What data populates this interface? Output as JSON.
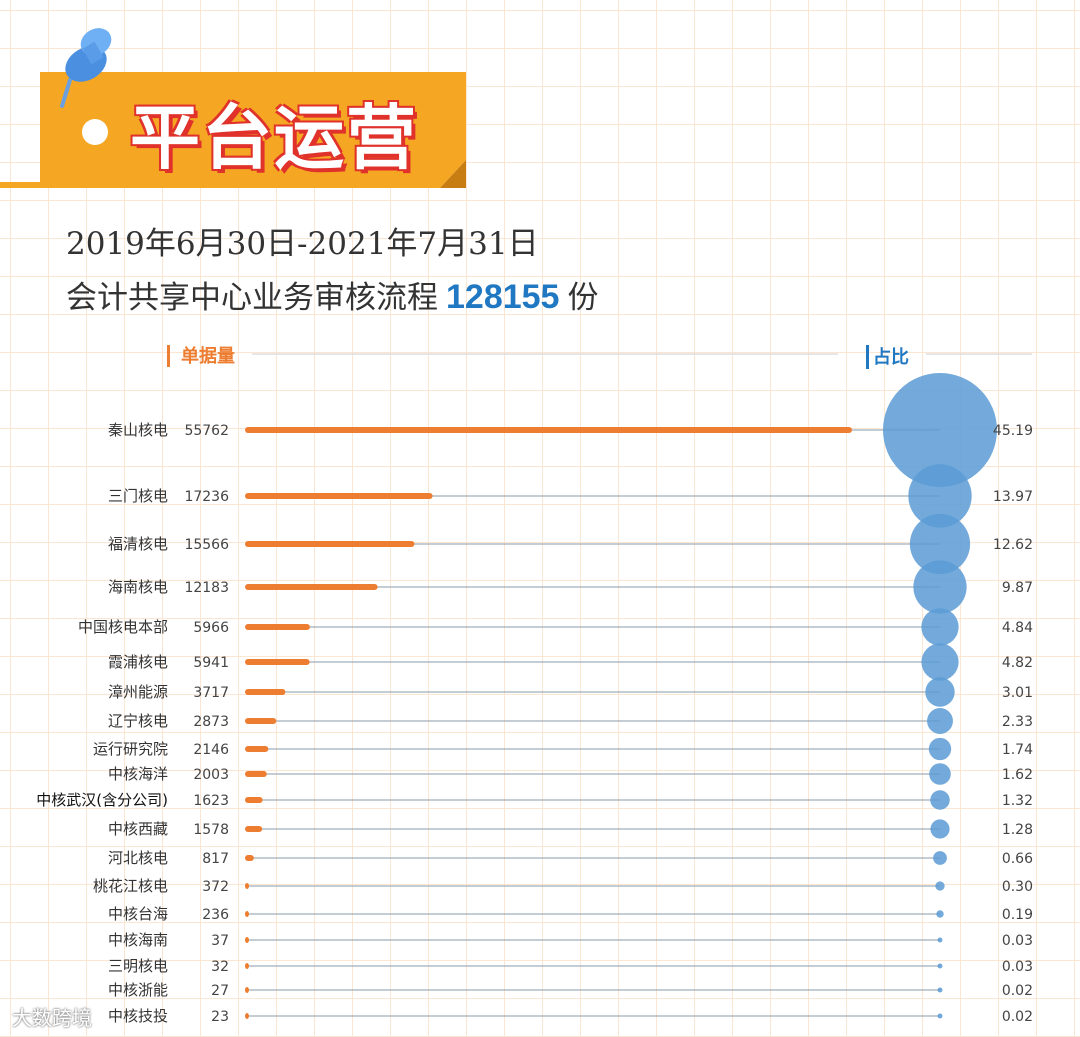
{
  "banner": {
    "title": "平台运营"
  },
  "subtitle": {
    "date_range": "2019年6月30日-2021年7月31日",
    "label": "会计共享中心业务审核流程",
    "count": "128155",
    "unit": "份"
  },
  "watermark": "大数跨境",
  "colors": {
    "bar": "#ed7d31",
    "bubble": "#5b9bd5",
    "accent_blue": "#1f78c1",
    "banner": "#f5a623"
  },
  "chart_data": {
    "type": "bar",
    "legend": {
      "left": "单据量",
      "right": "占比"
    },
    "categories": [
      "秦山核电",
      "三门核电",
      "福清核电",
      "海南核电",
      "中国核电本部",
      "霞浦核电",
      "漳州能源",
      "辽宁核电",
      "运行研究院",
      "中核海洋",
      "中核武汉(含分公司)",
      "中核西藏",
      "河北核电",
      "桃花江核电",
      "中核台海",
      "中核海南",
      "三明核电",
      "中核浙能",
      "中核技投"
    ],
    "series": [
      {
        "name": "单据量",
        "values": [
          55762,
          17236,
          15566,
          12183,
          5966,
          5941,
          3717,
          2873,
          2146,
          2003,
          1623,
          1578,
          817,
          372,
          236,
          37,
          32,
          27,
          23
        ]
      },
      {
        "name": "占比",
        "values": [
          45.19,
          13.97,
          12.62,
          9.87,
          4.84,
          4.82,
          3.01,
          2.33,
          1.74,
          1.62,
          1.32,
          1.28,
          0.66,
          0.3,
          0.19,
          0.03,
          0.03,
          0.02,
          0.02
        ]
      }
    ],
    "value_labels": [
      "55762",
      "17236",
      "15566",
      "12183",
      "5966",
      "5941",
      "3717",
      "2873",
      "2146",
      "2003",
      "1623",
      "1578",
      "817",
      "372",
      "236",
      "37",
      "32",
      "27",
      "23"
    ],
    "share_labels": [
      "45.19",
      "13.97",
      "12.62",
      "9.87",
      "4.84",
      "4.82",
      "3.01",
      "2.33",
      "1.74",
      "1.62",
      "1.32",
      "1.28",
      "0.66",
      "0.30",
      "0.19",
      "0.03",
      "0.03",
      "0.02",
      "0.02"
    ]
  }
}
